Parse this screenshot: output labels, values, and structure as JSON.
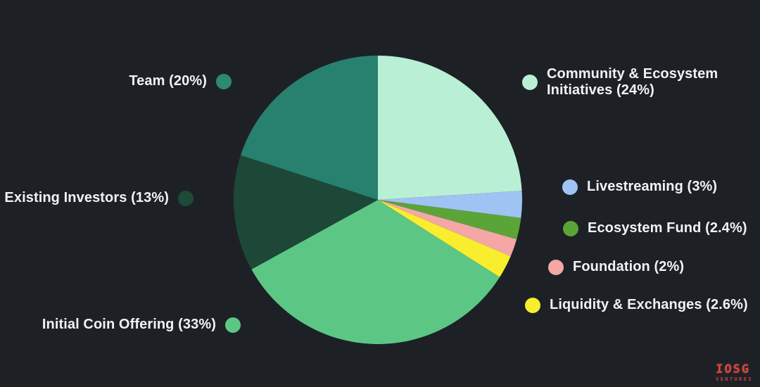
{
  "page": {
    "background": "#1d2126",
    "text_color": "#f0f3f2"
  },
  "watermark": {
    "line1": "IOSG",
    "line2": "VENTURES",
    "color": "#dc4b40"
  },
  "chart_data": {
    "type": "pie",
    "title": "",
    "start_angle_deg": 0,
    "direction": "clockwise",
    "legend_position": "around",
    "slices": [
      {
        "label": "Community & Ecosystem Initiatives",
        "value": 24,
        "color": "#b9f0d5"
      },
      {
        "label": "Livestreaming",
        "value": 3,
        "color": "#9fc3f2"
      },
      {
        "label": "Ecosystem Fund",
        "value": 2.4,
        "color": "#5ba438"
      },
      {
        "label": "Foundation",
        "value": 2,
        "color": "#f4a7a5"
      },
      {
        "label": "Liquidity & Exchanges",
        "value": 2.6,
        "color": "#f8ee2d"
      },
      {
        "label": "Initial Coin Offering",
        "value": 33,
        "color": "#5cc785"
      },
      {
        "label": "Existing Investors",
        "value": 13,
        "color": "#1d4837"
      },
      {
        "label": "Team",
        "value": 20,
        "color": "#27816e"
      }
    ]
  },
  "legend": {
    "team": {
      "label": "Team (20%)",
      "color": "#2d8a70"
    },
    "existing": {
      "label": "Existing Investors (13%)",
      "color": "#1e4a38"
    },
    "ico": {
      "label": "Initial Coin Offering (33%)",
      "color": "#5cc785"
    },
    "community": {
      "label_line1": "Community & Ecosystem",
      "label_line2": "Initiatives (24%)",
      "color": "#b9f0d5"
    },
    "livestreaming": {
      "label": "Livestreaming (3%)",
      "color": "#9fc3f2"
    },
    "ecosystem_fund": {
      "label": "Ecosystem Fund (2.4%)",
      "color": "#5ba438"
    },
    "foundation": {
      "label": "Foundation (2%)",
      "color": "#f4a7a5"
    },
    "liquidity": {
      "label": "Liquidity & Exchanges (2.6%)",
      "color": "#f8ee2d"
    }
  }
}
